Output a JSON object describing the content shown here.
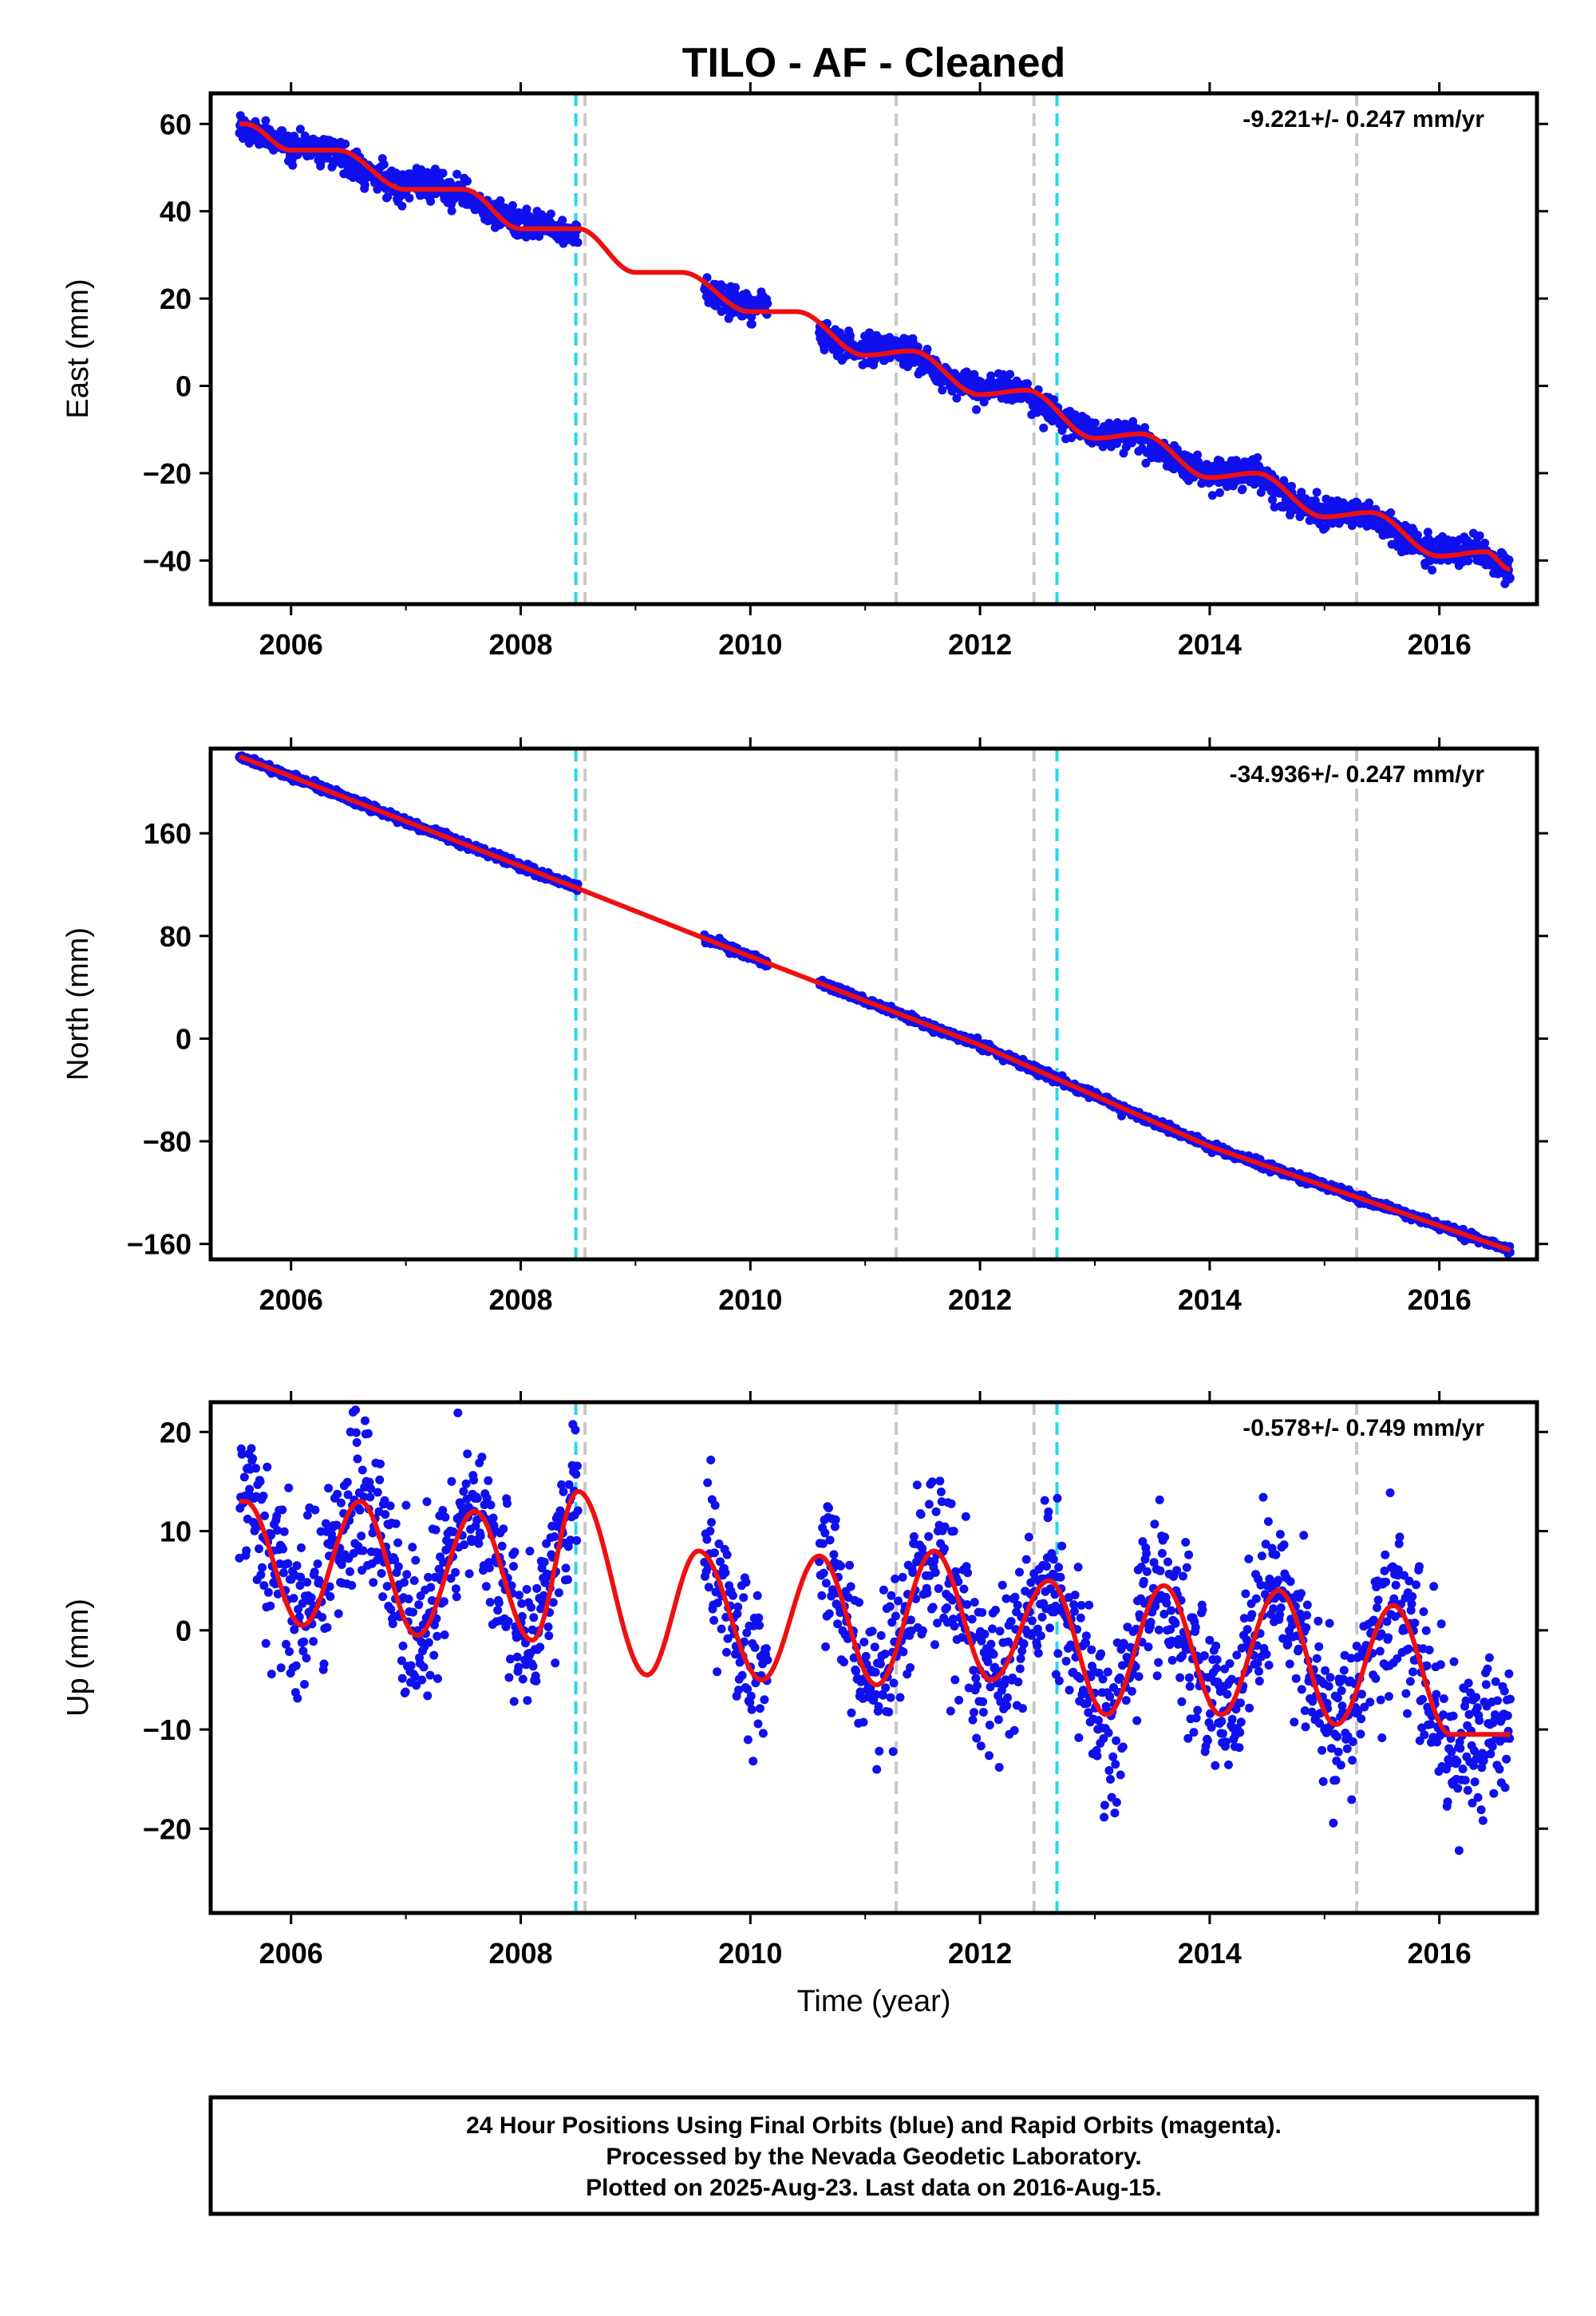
{
  "title": "TILO  - AF - Cleaned",
  "x_axis": {
    "label": "Time (year)",
    "ticks": [
      2006,
      2008,
      2010,
      2012,
      2014,
      2016
    ],
    "range": [
      2005.3,
      2016.85
    ]
  },
  "footer": {
    "lines": [
      "24 Hour Positions Using Final Orbits (blue) and Rapid Orbits (magenta).",
      "Processed by the Nevada Geodetic Laboratory.",
      "Plotted on 2025-Aug-23. Last data on 2016-Aug-15."
    ]
  },
  "colors": {
    "data": "#1010ee",
    "model": "#ee1010",
    "equipment_change": "#28d8e8",
    "other_event": "#c8c8c8",
    "frame": "#000000"
  },
  "chart_data": [
    {
      "type": "scatter",
      "component": "east",
      "ylabel": "East (mm)",
      "rate_text": "-9.221+/- 0.247 mm/yr",
      "ylim": [
        -50,
        67
      ],
      "yticks": [
        60,
        40,
        20,
        0,
        -20,
        -40
      ],
      "ytick_labels": [
        "60",
        "40",
        "20",
        "0",
        "−20",
        "−40"
      ],
      "data_segments": [
        [
          2005.55,
          2008.5
        ],
        [
          2009.6,
          2010.15
        ],
        [
          2010.6,
          2016.62
        ]
      ],
      "model": {
        "rate_mm_per_yr": -9.221,
        "annual_amp": 3.0,
        "annual_phase": 0.15,
        "semiannual_amp": 1.2,
        "semiannual_phase": 0.4,
        "offsets": [
          {
            "year": 2008.5,
            "mm": 0
          }
        ],
        "start_value": 60.5
      },
      "noise_mm": 1.6,
      "samples": [
        {
          "x": 2005.6,
          "y": 60
        },
        {
          "x": 2006.0,
          "y": 54
        },
        {
          "x": 2006.4,
          "y": 54
        },
        {
          "x": 2007.0,
          "y": 45
        },
        {
          "x": 2007.5,
          "y": 45
        },
        {
          "x": 2008.0,
          "y": 36
        },
        {
          "x": 2008.5,
          "y": 36
        },
        {
          "x": 2009.0,
          "y": 26
        },
        {
          "x": 2009.4,
          "y": 26
        },
        {
          "x": 2010.0,
          "y": 17
        },
        {
          "x": 2010.4,
          "y": 17
        },
        {
          "x": 2011.0,
          "y": 7
        },
        {
          "x": 2011.4,
          "y": 8
        },
        {
          "x": 2012.0,
          "y": -2
        },
        {
          "x": 2012.4,
          "y": -1
        },
        {
          "x": 2013.0,
          "y": -12
        },
        {
          "x": 2013.4,
          "y": -11
        },
        {
          "x": 2014.0,
          "y": -21
        },
        {
          "x": 2014.4,
          "y": -20
        },
        {
          "x": 2015.0,
          "y": -30
        },
        {
          "x": 2015.4,
          "y": -29
        },
        {
          "x": 2016.0,
          "y": -39
        },
        {
          "x": 2016.4,
          "y": -38
        },
        {
          "x": 2016.62,
          "y": -42
        }
      ]
    },
    {
      "type": "scatter",
      "component": "north",
      "ylabel": "North (mm)",
      "rate_text": "-34.936+/- 0.247 mm/yr",
      "ylim": [
        -172,
        226
      ],
      "yticks": [
        160,
        80,
        0,
        -80,
        -160
      ],
      "ytick_labels": [
        "160",
        "80",
        "0",
        "−80",
        "−160"
      ],
      "data_segments": [
        [
          2005.55,
          2008.5
        ],
        [
          2009.6,
          2010.15
        ],
        [
          2010.6,
          2016.62
        ]
      ],
      "samples": [
        {
          "x": 2005.55,
          "y": 220
        },
        {
          "x": 2008.5,
          "y": 117
        },
        {
          "x": 2010.0,
          "y": 64
        },
        {
          "x": 2012.0,
          "y": -5
        },
        {
          "x": 2014.0,
          "y": -84
        },
        {
          "x": 2016.62,
          "y": -165
        }
      ],
      "noise_mm": 1.5
    },
    {
      "type": "scatter",
      "component": "up",
      "ylabel": "Up (mm)",
      "rate_text": "-0.578+/- 0.749 mm/yr",
      "ylim": [
        -28.5,
        23
      ],
      "yticks": [
        20,
        10,
        0,
        -10,
        -20
      ],
      "ytick_labels": [
        "20",
        "10",
        "0",
        "−10",
        "−20"
      ],
      "data_segments": [
        [
          2005.55,
          2008.5
        ],
        [
          2009.6,
          2010.15
        ],
        [
          2010.6,
          2016.62
        ]
      ],
      "model": {
        "peaks": [
          {
            "x": 2005.6,
            "y": 13
          },
          {
            "x": 2006.6,
            "y": 13
          },
          {
            "x": 2007.6,
            "y": 12
          },
          {
            "x": 2008.5,
            "y": 14
          },
          {
            "x": 2009.55,
            "y": 8
          },
          {
            "x": 2010.6,
            "y": 7.5
          },
          {
            "x": 2011.6,
            "y": 8
          },
          {
            "x": 2012.6,
            "y": 5
          },
          {
            "x": 2013.6,
            "y": 4.5
          },
          {
            "x": 2014.6,
            "y": 4
          },
          {
            "x": 2015.6,
            "y": 2.5
          }
        ],
        "troughs": [
          {
            "x": 2006.1,
            "y": 0.5
          },
          {
            "x": 2007.1,
            "y": -0.5
          },
          {
            "x": 2008.1,
            "y": -1
          },
          {
            "x": 2009.1,
            "y": -4.5
          },
          {
            "x": 2010.1,
            "y": -5
          },
          {
            "x": 2011.1,
            "y": -5.5
          },
          {
            "x": 2012.1,
            "y": -5
          },
          {
            "x": 2013.1,
            "y": -8.5
          },
          {
            "x": 2014.1,
            "y": -8.5
          },
          {
            "x": 2015.1,
            "y": -9.5
          },
          {
            "x": 2016.1,
            "y": -10.5
          }
        ]
      },
      "noise_mm": 4.2
    }
  ],
  "event_lines": [
    {
      "year": 2008.48,
      "kind": "equipment_change"
    },
    {
      "year": 2008.56,
      "kind": "other_event"
    },
    {
      "year": 2011.27,
      "kind": "other_event"
    },
    {
      "year": 2012.47,
      "kind": "other_event"
    },
    {
      "year": 2012.67,
      "kind": "equipment_change"
    },
    {
      "year": 2015.28,
      "kind": "other_event"
    }
  ]
}
